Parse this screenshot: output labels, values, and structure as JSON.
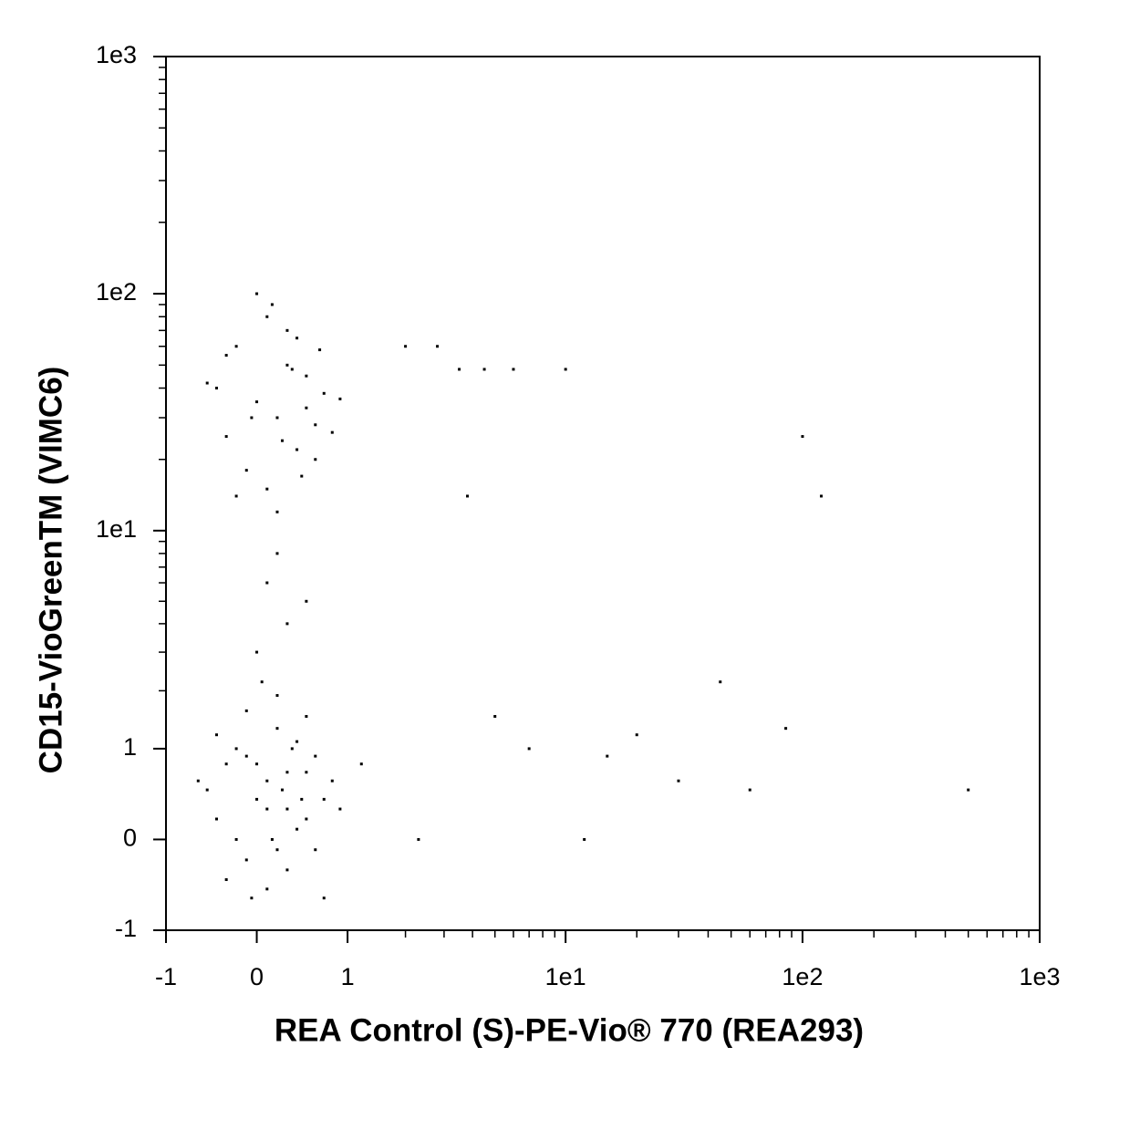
{
  "chart_data": {
    "type": "scatter",
    "x_label": "REA Control (S)-PE-Vio® 770 (REA293)",
    "y_label": "CD15-VioGreenTM (VIMC6)",
    "xscale": "asinh",
    "yscale": "asinh",
    "color": "#000000",
    "xlim": [
      -1,
      1000
    ],
    "ylim": [
      -1,
      1000
    ],
    "xticks": [
      -1,
      0,
      1,
      {
        "value": 10,
        "label": "1e1"
      },
      {
        "value": 100,
        "label": "1e2"
      },
      {
        "value": 1000,
        "label": "1e3"
      }
    ],
    "yticks": [
      -1,
      0,
      1,
      {
        "value": 10,
        "label": "1e1"
      },
      {
        "value": 100,
        "label": "1e2"
      },
      {
        "value": 1000,
        "label": "1e3"
      }
    ],
    "xminorticks": [
      2,
      3,
      4,
      5,
      6,
      7,
      8,
      9,
      20,
      30,
      40,
      50,
      60,
      70,
      80,
      90,
      200,
      300,
      400,
      500,
      600,
      700,
      800,
      900
    ],
    "yminorticks": [
      2,
      3,
      4,
      5,
      6,
      7,
      8,
      9,
      20,
      30,
      40,
      50,
      60,
      70,
      80,
      90,
      200,
      300,
      400,
      500,
      600,
      700,
      800,
      900
    ],
    "x": [
      -0.5,
      -0.4,
      -0.3,
      -0.2,
      -0.1,
      0,
      0.1,
      0.2,
      0.3,
      0.4,
      0.5,
      0.6,
      0.7,
      -0.3,
      -0.1,
      0.1,
      0.3,
      0.5,
      0.2,
      0,
      -0.2,
      0.4,
      0.6,
      0.8,
      -0.4,
      0.1,
      0.3,
      -0.1,
      0.2,
      0.5,
      0.9,
      -0.6,
      0.7,
      0.05,
      0.15,
      0.25,
      0.35,
      -0.05,
      0.45,
      1.2,
      -0.4,
      -0.3,
      -0.2,
      -0.1,
      0,
      0.1,
      0.2,
      0.3,
      0.4,
      0.5,
      0.6,
      0.7,
      -0.2,
      0,
      0.2,
      0.4,
      0.6,
      -0.3,
      0.1,
      0.3,
      0.5,
      0.8,
      -0.5,
      0.15,
      0.25,
      0.35,
      -0.05,
      0.45,
      0.65,
      0.9,
      0.1,
      0.3,
      0,
      0.5,
      0.2,
      2,
      2.8,
      3.5,
      4.5,
      6,
      10,
      3.8,
      2.3,
      5,
      7,
      12,
      15,
      20,
      30,
      45,
      60,
      85,
      100,
      120,
      500
    ],
    "y": [
      0.5,
      0.2,
      0.8,
      1,
      -0.2,
      0.4,
      0.6,
      1.3,
      0.3,
      0.1,
      0.7,
      0.9,
      0.4,
      -0.4,
      1.6,
      -0.5,
      -0.3,
      0.2,
      1.9,
      0.8,
      0,
      1.1,
      -0.1,
      0.6,
      1.2,
      0.3,
      0.7,
      0.9,
      -0.1,
      1.5,
      0.3,
      0.6,
      -0.6,
      2.2,
      0,
      0.5,
      1,
      -0.6,
      0.4,
      0.8,
      40,
      25,
      60,
      18,
      35,
      80,
      30,
      50,
      22,
      45,
      28,
      38,
      14,
      100,
      12,
      65,
      20,
      55,
      15,
      70,
      33,
      26,
      42,
      90,
      24,
      48,
      30,
      17,
      58,
      36,
      6,
      4,
      3,
      5,
      8,
      60,
      60,
      48,
      48,
      48,
      48,
      14,
      0,
      1.5,
      1,
      0,
      0.9,
      1.2,
      0.6,
      2.2,
      0.5,
      1.3,
      25,
      14,
      0.5
    ]
  }
}
